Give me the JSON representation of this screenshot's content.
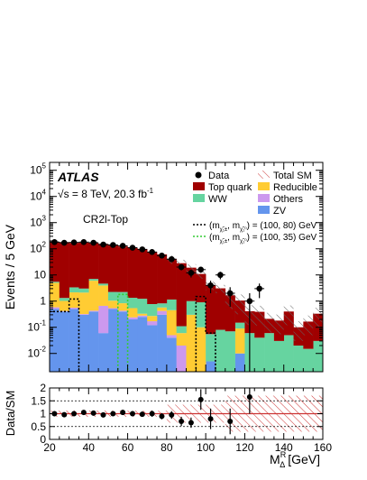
{
  "chart_data": [
    {
      "type": "bar",
      "subtype": "stacked-histogram-log",
      "experiment": "ATLAS",
      "energy_label": "√s = 8 TeV, 20.3 fb",
      "lumi_exponent": "-1",
      "region_label": "CR2l-Top",
      "ylabel": "Events / 5 GeV",
      "xlim": [
        20,
        160
      ],
      "ylim": [
        0.002,
        200000
      ],
      "yscale": "log",
      "y_ticks": [
        {
          "value": 0.01,
          "label": "10",
          "exp": "-2"
        },
        {
          "value": 0.1,
          "label": "10",
          "exp": "-1"
        },
        {
          "value": 1,
          "label": "1",
          "exp": ""
        },
        {
          "value": 10,
          "label": "10",
          "exp": ""
        },
        {
          "value": 100,
          "label": "10",
          "exp": "2"
        },
        {
          "value": 1000,
          "label": "10",
          "exp": "3"
        },
        {
          "value": 10000,
          "label": "10",
          "exp": "4"
        },
        {
          "value": 100000,
          "label": "10",
          "exp": "5"
        }
      ],
      "bin_width": 5,
      "bin_edges_start": [
        20,
        25,
        30,
        35,
        40,
        45,
        50,
        55,
        60,
        65,
        70,
        75,
        80,
        85,
        90,
        95,
        100,
        105,
        110,
        115,
        120,
        125,
        130,
        135,
        140,
        145,
        150,
        155
      ],
      "series": [
        {
          "name": "ZV",
          "color": "#6495ed",
          "values": [
            0.5,
            0.4,
            0.5,
            0.3,
            0.4,
            0.06,
            0.5,
            0.4,
            0.2,
            0.25,
            0.12,
            0.3,
            0.04,
            0,
            0,
            0,
            0.005,
            0,
            0,
            0.01,
            0,
            0,
            0,
            0,
            0,
            0,
            0,
            0
          ]
        },
        {
          "name": "Others",
          "color": "#cc99ee",
          "values": [
            0.08,
            0.02,
            0.06,
            0.02,
            0.03,
            0.6,
            0.04,
            0.03,
            0.04,
            0.03,
            0.05,
            0.12,
            0.01,
            0.02,
            0,
            0,
            0,
            0,
            0,
            0,
            0,
            0,
            0,
            0,
            0,
            0,
            0,
            0
          ]
        },
        {
          "name": "Reducible",
          "color": "#ffcc33",
          "values": [
            4.4,
            0.6,
            1.6,
            1.8,
            5.6,
            3.3,
            0.5,
            0.4,
            0.3,
            0.05,
            0.1,
            0.15,
            0.4,
            0.04,
            0.3,
            0.1,
            0,
            0,
            0,
            0.08,
            0,
            0,
            0,
            0,
            0,
            0,
            0,
            0
          ]
        },
        {
          "name": "WW",
          "color": "#66d4a0",
          "values": [
            0.5,
            0.3,
            1.2,
            0.9,
            1.0,
            0.7,
            1.2,
            1.4,
            0.8,
            0.9,
            0.5,
            0.25,
            0.7,
            0.05,
            0.7,
            0.8,
            0.05,
            0.08,
            0.07,
            0.06,
            0.06,
            0.04,
            0.06,
            0.03,
            0.05,
            0.02,
            0.015,
            0.03
          ]
        },
        {
          "name": "Top quark",
          "color": "#a00000",
          "values": [
            180,
            180,
            165,
            170,
            160,
            150,
            140,
            120,
            105,
            95,
            75,
            60,
            40,
            28,
            18,
            10,
            4,
            3,
            1.6,
            0.9,
            0.35,
            0.35,
            0.15,
            0.15,
            0.35,
            0.08,
            0.15,
            0.3
          ]
        }
      ],
      "data_points": [
        {
          "x": 22.5,
          "y": 180,
          "err": 14
        },
        {
          "x": 27.5,
          "y": 170,
          "err": 13
        },
        {
          "x": 32.5,
          "y": 175,
          "err": 13
        },
        {
          "x": 37.5,
          "y": 180,
          "err": 14
        },
        {
          "x": 42.5,
          "y": 170,
          "err": 13
        },
        {
          "x": 47.5,
          "y": 145,
          "err": 12
        },
        {
          "x": 52.5,
          "y": 140,
          "err": 12
        },
        {
          "x": 57.5,
          "y": 130,
          "err": 11
        },
        {
          "x": 62.5,
          "y": 110,
          "err": 10
        },
        {
          "x": 67.5,
          "y": 95,
          "err": 10
        },
        {
          "x": 72.5,
          "y": 75,
          "err": 9
        },
        {
          "x": 77.5,
          "y": 55,
          "err": 8
        },
        {
          "x": 82.5,
          "y": 40,
          "err": 7
        },
        {
          "x": 87.5,
          "y": 20,
          "err": 5
        },
        {
          "x": 92.5,
          "y": 12,
          "err": 4
        },
        {
          "x": 97.5,
          "y": 16,
          "err": 4
        },
        {
          "x": 102.5,
          "y": 4,
          "err": 2
        },
        {
          "x": 107.5,
          "y": 10,
          "err": 3.2
        },
        {
          "x": 112.5,
          "y": 2,
          "err": 1.4
        },
        {
          "x": 122.5,
          "y": 1,
          "err": 1.0
        },
        {
          "x": 127.5,
          "y": 3,
          "err": 1.7
        }
      ],
      "signal_curves": [
        {
          "name": "(100, 80) GeV",
          "color": "#000000",
          "dash": "2,2",
          "values": [
            0.4,
            0.4,
            1.2,
            0,
            0,
            0,
            0,
            0,
            0,
            0,
            0,
            0,
            0,
            0,
            0,
            1.5,
            0.06,
            0,
            0,
            0,
            0,
            0,
            0,
            0,
            0,
            0,
            0,
            0
          ]
        },
        {
          "name": "(100, 35) GeV",
          "color": "#33cc33",
          "dash": "2,2",
          "values": [
            0,
            0,
            0,
            0,
            0,
            0,
            0,
            1.8,
            0,
            0,
            0,
            0,
            0,
            0,
            0,
            0,
            0,
            0,
            0,
            0,
            0,
            0,
            0,
            0,
            0,
            0,
            0,
            0
          ]
        }
      ],
      "legend": {
        "placement": "top-right",
        "items": [
          {
            "label": "Data",
            "kind": "marker",
            "color": "#000000"
          },
          {
            "label": "Total SM",
            "kind": "hatch",
            "color": "#cc3333"
          },
          {
            "label": "Top quark",
            "kind": "box",
            "color": "#a00000"
          },
          {
            "label": "Reducible",
            "kind": "box",
            "color": "#ffcc33"
          },
          {
            "label": "WW",
            "kind": "box",
            "color": "#66d4a0"
          },
          {
            "label": "Others",
            "kind": "box",
            "color": "#cc99ee"
          },
          {
            "label": "ZV",
            "kind": "box",
            "color": "#6495ed"
          }
        ],
        "signal_pre": "(m",
        "signal_mid": ", m",
        "signal_post": ") = ",
        "signal_sub1": "χ̃₁±",
        "signal_sub2": "χ̃₁⁰",
        "signal_mass1": "(100, 80) GeV",
        "signal_mass2": "(100, 35) GeV"
      }
    },
    {
      "type": "scatter",
      "subtype": "ratio",
      "ylabel": "Data/SM",
      "xlabel_main": "M",
      "xlabel_sub": "Δ",
      "xlabel_sup": "R",
      "xlabel_unit": "[GeV]",
      "xlim": [
        20,
        160
      ],
      "ylim": [
        0,
        2
      ],
      "x_ticks": [
        20,
        40,
        60,
        80,
        100,
        120,
        140,
        160
      ],
      "y_ticks": [
        0,
        0.5,
        1,
        1.5,
        2
      ],
      "y_tick_labels": [
        "0",
        "0.5",
        "1",
        "1.5",
        "2"
      ],
      "reference_lines": [
        0.5,
        1,
        1.5
      ],
      "points": [
        {
          "x": 22.5,
          "y": 1.0,
          "err": 0.1
        },
        {
          "x": 27.5,
          "y": 0.96,
          "err": 0.08
        },
        {
          "x": 32.5,
          "y": 1.0,
          "err": 0.08
        },
        {
          "x": 37.5,
          "y": 1.05,
          "err": 0.08
        },
        {
          "x": 42.5,
          "y": 1.02,
          "err": 0.08
        },
        {
          "x": 47.5,
          "y": 0.95,
          "err": 0.08
        },
        {
          "x": 52.5,
          "y": 1.0,
          "err": 0.08
        },
        {
          "x": 57.5,
          "y": 1.05,
          "err": 0.1
        },
        {
          "x": 62.5,
          "y": 1.0,
          "err": 0.1
        },
        {
          "x": 67.5,
          "y": 0.98,
          "err": 0.1
        },
        {
          "x": 72.5,
          "y": 1.0,
          "err": 0.12
        },
        {
          "x": 77.5,
          "y": 0.9,
          "err": 0.12
        },
        {
          "x": 82.5,
          "y": 0.95,
          "err": 0.15
        },
        {
          "x": 87.5,
          "y": 0.7,
          "err": 0.18
        },
        {
          "x": 92.5,
          "y": 0.65,
          "err": 0.2
        },
        {
          "x": 97.5,
          "y": 1.55,
          "err": 0.4
        },
        {
          "x": 102.5,
          "y": 0.8,
          "err": 0.4
        },
        {
          "x": 112.5,
          "y": 0.7,
          "err": 0.5
        },
        {
          "x": 122.5,
          "y": 1.65,
          "err": 0.65
        }
      ]
    }
  ]
}
